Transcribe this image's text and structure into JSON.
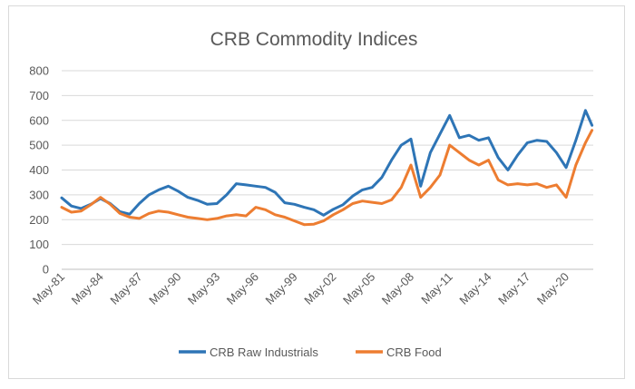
{
  "chart_data": {
    "type": "line",
    "title": "CRB Commodity Indices",
    "xlabel": "",
    "ylabel": "",
    "ylim": [
      0,
      800
    ],
    "y_ticks": [
      "0",
      "100",
      "200",
      "300",
      "400",
      "500",
      "600",
      "700",
      "800"
    ],
    "x_ticks": [
      "May-81",
      "May-84",
      "May-87",
      "May-90",
      "May-93",
      "May-96",
      "May-99",
      "May-02",
      "May-05",
      "May-08",
      "May-11",
      "May-14",
      "May-17",
      "May-20"
    ],
    "grid": "horizontal",
    "legend_position": "bottom",
    "series": [
      {
        "name": "CRB Raw Industrials",
        "color": "#2e75b6",
        "x": [
          "May-81",
          "Feb-82",
          "Nov-82",
          "Aug-83",
          "May-84",
          "Feb-85",
          "Nov-85",
          "Aug-86",
          "May-87",
          "Feb-88",
          "Nov-88",
          "Aug-89",
          "May-90",
          "Feb-91",
          "Nov-91",
          "Aug-92",
          "May-93",
          "Feb-94",
          "Nov-94",
          "Aug-95",
          "May-96",
          "Feb-97",
          "Nov-97",
          "Aug-98",
          "May-99",
          "Feb-00",
          "Nov-00",
          "Aug-01",
          "May-02",
          "Feb-03",
          "Nov-03",
          "Aug-04",
          "May-05",
          "Feb-06",
          "Nov-06",
          "Aug-07",
          "May-08",
          "Feb-09",
          "Nov-09",
          "Aug-10",
          "May-11",
          "Feb-12",
          "Nov-12",
          "Aug-13",
          "May-14",
          "Feb-15",
          "Nov-15",
          "Aug-16",
          "May-17",
          "Feb-18",
          "Nov-18",
          "Aug-19",
          "May-20",
          "Feb-21",
          "Nov-21",
          "May-22"
        ],
        "values": [
          288,
          255,
          245,
          262,
          285,
          265,
          232,
          222,
          265,
          300,
          320,
          335,
          315,
          290,
          278,
          262,
          265,
          300,
          345,
          340,
          335,
          330,
          310,
          268,
          262,
          250,
          240,
          218,
          242,
          260,
          295,
          320,
          330,
          370,
          440,
          500,
          525,
          335,
          470,
          545,
          620,
          530,
          540,
          520,
          530,
          450,
          400,
          460,
          510,
          520,
          515,
          470,
          410,
          520,
          640,
          580
        ]
      },
      {
        "name": "CRB Food",
        "color": "#ed7d31",
        "x": [
          "May-81",
          "Feb-82",
          "Nov-82",
          "Aug-83",
          "May-84",
          "Feb-85",
          "Nov-85",
          "Aug-86",
          "May-87",
          "Feb-88",
          "Nov-88",
          "Aug-89",
          "May-90",
          "Feb-91",
          "Nov-91",
          "Aug-92",
          "May-93",
          "Feb-94",
          "Nov-94",
          "Aug-95",
          "May-96",
          "Feb-97",
          "Nov-97",
          "Aug-98",
          "May-99",
          "Feb-00",
          "Nov-00",
          "Aug-01",
          "May-02",
          "Feb-03",
          "Nov-03",
          "Aug-04",
          "May-05",
          "Feb-06",
          "Nov-06",
          "Aug-07",
          "May-08",
          "Feb-09",
          "Nov-09",
          "Aug-10",
          "May-11",
          "Feb-12",
          "Nov-12",
          "Aug-13",
          "May-14",
          "Feb-15",
          "Nov-15",
          "Aug-16",
          "May-17",
          "Feb-18",
          "Nov-18",
          "Aug-19",
          "May-20",
          "Feb-21",
          "Nov-21",
          "May-22"
        ],
        "values": [
          250,
          230,
          235,
          260,
          290,
          262,
          225,
          210,
          205,
          225,
          235,
          230,
          220,
          210,
          205,
          200,
          205,
          215,
          220,
          215,
          250,
          240,
          220,
          210,
          195,
          180,
          182,
          195,
          220,
          240,
          265,
          275,
          270,
          265,
          280,
          330,
          420,
          290,
          330,
          380,
          500,
          470,
          440,
          420,
          440,
          360,
          340,
          345,
          340,
          345,
          330,
          340,
          290,
          420,
          510,
          560
        ]
      }
    ]
  }
}
